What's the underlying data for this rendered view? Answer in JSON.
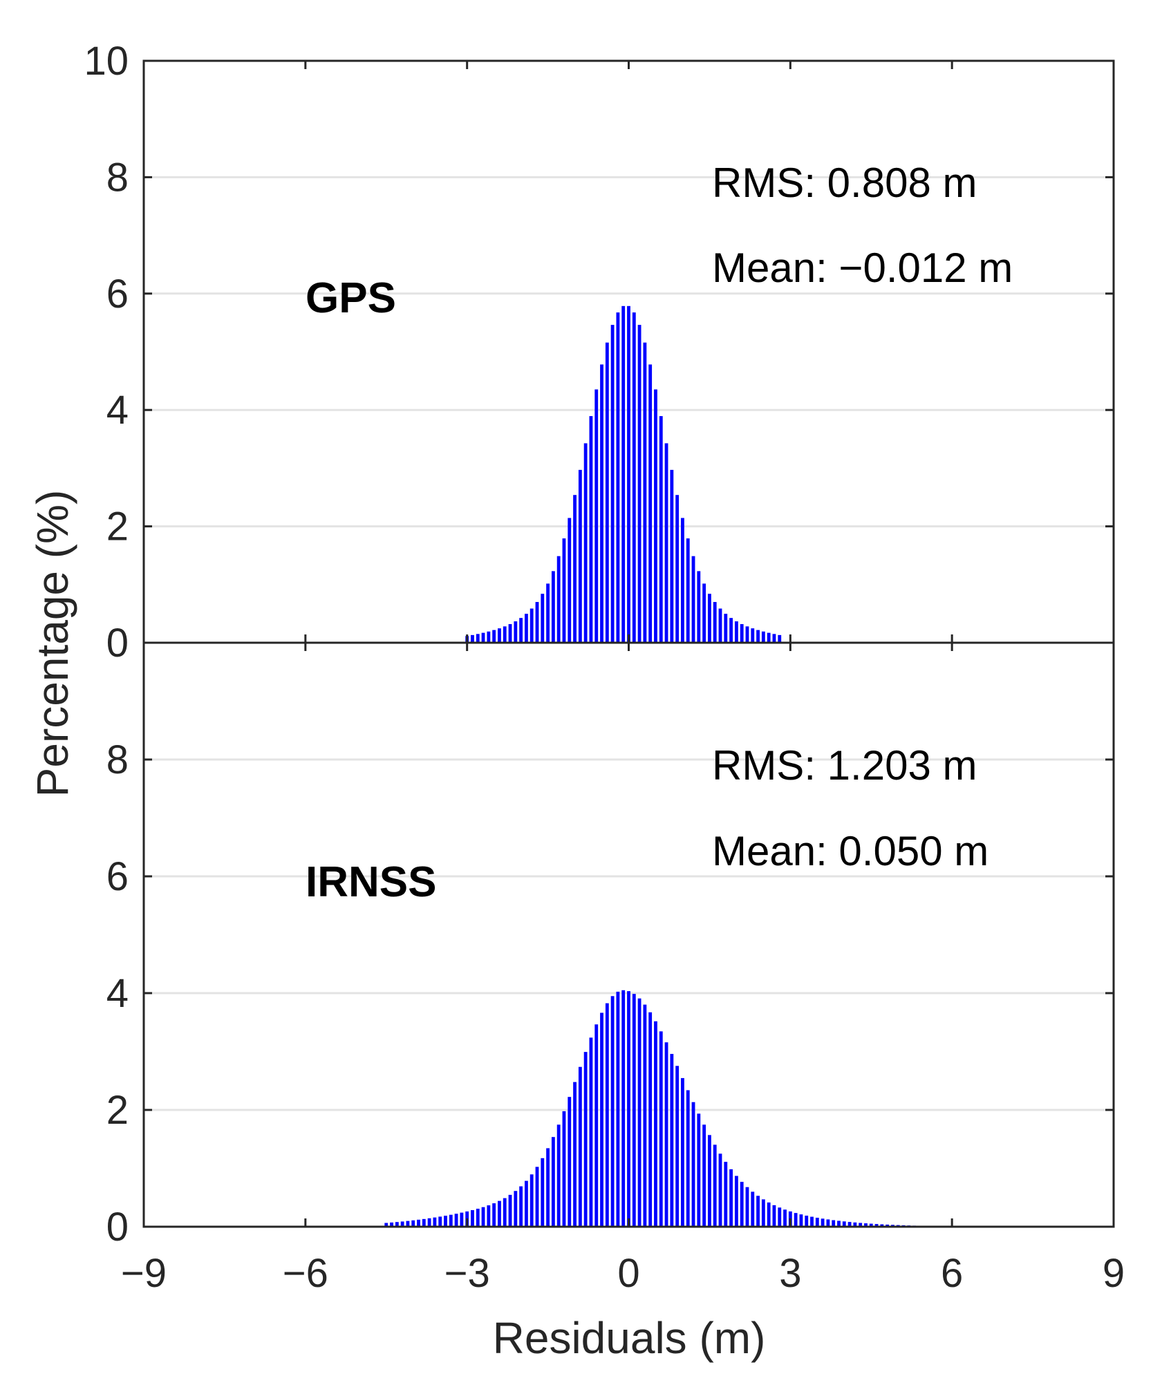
{
  "chart_data": {
    "type": "bar",
    "xlabel": "Residuals (m)",
    "ylabel": "Percentage (%)",
    "xlim": [
      -9,
      9
    ],
    "xticks": [
      "−9",
      "−6",
      "−3",
      "0",
      "3",
      "6",
      "9"
    ],
    "bar_color": "#0000ff",
    "bin_width_m": 0.1,
    "grid_y": true,
    "panels": [
      {
        "name": "GPS",
        "label": "GPS",
        "rms_text": "RMS: 0.808 m",
        "mean_text": "Mean: −0.012 m",
        "rms": 0.808,
        "mean": -0.012,
        "ylim": [
          0,
          10
        ],
        "yticks": [
          "0",
          "2",
          "4",
          "6",
          "8",
          "10"
        ],
        "peak_percent": 5.8,
        "distribution": {
          "center": -0.05,
          "sigma": 0.68,
          "tail_weight": 0.16,
          "tail_sigma": 1.5
        },
        "x_range": [
          -3.0,
          2.8
        ]
      },
      {
        "name": "IRNSS",
        "label": "IRNSS",
        "rms_text": "RMS: 1.203 m",
        "mean_text": "Mean: 0.050 m",
        "rms": 1.203,
        "mean": 0.05,
        "ylim": [
          0,
          10
        ],
        "yticks": [
          "0",
          "2",
          "4",
          "6",
          "8",
          ""
        ],
        "peak_percent": 4.05,
        "distribution": {
          "center": -0.1,
          "sigma_left": 0.82,
          "sigma_right": 1.05,
          "tail_weight": 0.22,
          "tail_sigma": 2.0
        },
        "x_range": [
          -4.5,
          5.5
        ]
      }
    ]
  }
}
